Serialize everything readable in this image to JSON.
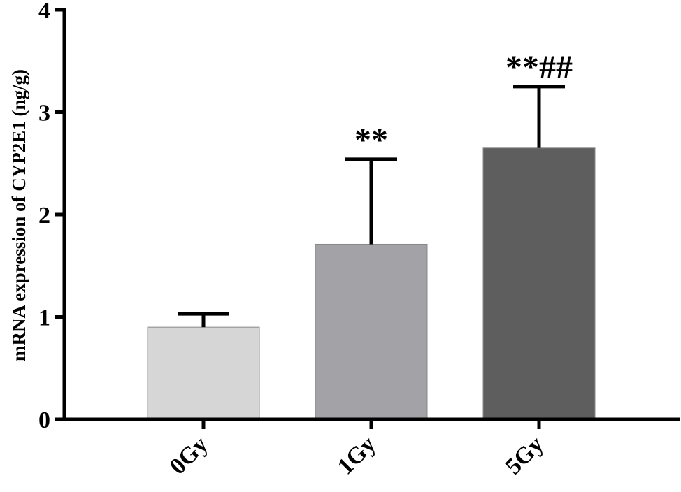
{
  "chart_data": {
    "type": "bar",
    "title": "",
    "xlabel": "",
    "ylabel": "mRNA expression of CYP2E1 (ng/g)",
    "ylim": [
      0,
      4
    ],
    "yticks": [
      "0",
      "1",
      "2",
      "3",
      "4"
    ],
    "categories": [
      "0Gy",
      "1Gy",
      "5Gy"
    ],
    "values": [
      0.9,
      1.71,
      2.65
    ],
    "error_upper": [
      1.03,
      2.54,
      3.25
    ],
    "significance": [
      "",
      "**",
      "**##"
    ],
    "bar_colors": [
      "#d6d6d6",
      "#a2a2a7",
      "#5e5e5e"
    ],
    "grid": false,
    "legend": "none"
  }
}
